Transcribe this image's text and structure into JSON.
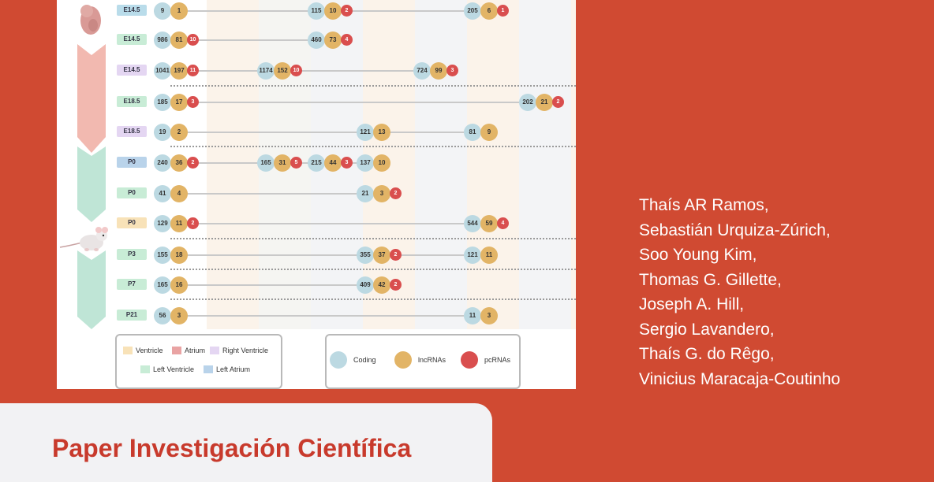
{
  "figure": {
    "rows": [
      {
        "stage": "E14.5",
        "tag_color": "#b9dcea",
        "clusters": [
          {
            "coding": "9",
            "lncrnas": "1"
          },
          {
            "coding": "115",
            "lncrnas": "10",
            "pcrnas": "2"
          },
          {
            "coding": "205",
            "lncrnas": "6",
            "pcrnas": "1"
          }
        ]
      },
      {
        "stage": "E14.5",
        "tag_color": "#c8ecd6",
        "clusters": [
          {
            "coding": "986",
            "lncrnas": "81",
            "pcrnas": "10"
          },
          {
            "coding": "460",
            "lncrnas": "73",
            "pcrnas": "4"
          }
        ]
      },
      {
        "stage": "E14.5",
        "tag_color": "#e4d6f2",
        "clusters": [
          {
            "coding": "1041",
            "lncrnas": "197",
            "pcrnas": "11"
          },
          {
            "coding": "1174",
            "lncrnas": "152",
            "pcrnas": "10"
          },
          {
            "coding": "724",
            "lncrnas": "99",
            "pcrnas": "3"
          }
        ]
      },
      {
        "stage": "E18.5",
        "tag_color": "#c8ecd6",
        "clusters": [
          {
            "coding": "185",
            "lncrnas": "17",
            "pcrnas": "3"
          },
          {
            "coding": "202",
            "lncrnas": "21",
            "pcrnas": "2"
          }
        ]
      },
      {
        "stage": "E18.5",
        "tag_color": "#e4d6f2",
        "clusters": [
          {
            "coding": "19",
            "lncrnas": "2"
          },
          {
            "coding": "121",
            "lncrnas": "13"
          },
          {
            "coding": "81",
            "lncrnas": "9"
          }
        ]
      },
      {
        "stage": "P0",
        "tag_color": "#b9d3ea",
        "clusters": [
          {
            "coding": "240",
            "lncrnas": "36",
            "pcrnas": "2"
          },
          {
            "coding": "165",
            "lncrnas": "31",
            "pcrnas": "5"
          },
          {
            "coding": "215",
            "lncrnas": "44",
            "pcrnas": "3"
          },
          {
            "coding": "137",
            "lncrnas": "10"
          }
        ]
      },
      {
        "stage": "P0",
        "tag_color": "#c8ecd6",
        "clusters": [
          {
            "coding": "41",
            "lncrnas": "4"
          },
          {
            "coding": "21",
            "lncrnas": "3",
            "pcrnas": "2"
          }
        ]
      },
      {
        "stage": "P0",
        "tag_color": "#f8e2b8",
        "clusters": [
          {
            "coding": "129",
            "lncrnas": "11",
            "pcrnas": "2"
          },
          {
            "coding": "544",
            "lncrnas": "59",
            "pcrnas": "4"
          }
        ]
      },
      {
        "stage": "P3",
        "tag_color": "#c8ecd6",
        "clusters": [
          {
            "coding": "155",
            "lncrnas": "18"
          },
          {
            "coding": "355",
            "lncrnas": "37",
            "pcrnas": "2"
          },
          {
            "coding": "121",
            "lncrnas": "11"
          }
        ]
      },
      {
        "stage": "P7",
        "tag_color": "#c8ecd6",
        "clusters": [
          {
            "coding": "165",
            "lncrnas": "16"
          },
          {
            "coding": "409",
            "lncrnas": "42",
            "pcrnas": "2"
          }
        ]
      },
      {
        "stage": "P21",
        "tag_color": "#c8ecd6",
        "clusters": [
          {
            "coding": "56",
            "lncrnas": "3"
          },
          {
            "coding": "11",
            "lncrnas": "3"
          }
        ]
      }
    ],
    "tissue_legend": [
      {
        "label": "Ventricle",
        "color": "#f8e2b8"
      },
      {
        "label": "Atrium",
        "color": "#e9a3a3"
      },
      {
        "label": "Right Ventricle",
        "color": "#e4d6f2"
      },
      {
        "label": "Left Ventricle",
        "color": "#c8ecd6"
      },
      {
        "label": "Left Atrium",
        "color": "#b9d3ea"
      }
    ],
    "rna_legend": [
      {
        "label": "Coding",
        "color": "#bcd9e2"
      },
      {
        "label": "lncRNAs",
        "color": "#e2b466"
      },
      {
        "label": "pcRNAs",
        "color": "#d94e4e"
      }
    ]
  },
  "authors": [
    "Thaís AR Ramos,",
    "Sebastián Urquiza-Zúrich,",
    "Soo Young Kim,",
    "Thomas G. Gillette,",
    "Joseph A. Hill,",
    "Sergio Lavandero,",
    "Thaís G. do Rêgo,",
    "Vinicius Maracaja-Coutinho"
  ],
  "footer": {
    "title": "Paper Investigación Científica"
  },
  "colors": {
    "background": "#d04a32",
    "title": "#c83a2c",
    "panel": "#f2f2f4"
  }
}
